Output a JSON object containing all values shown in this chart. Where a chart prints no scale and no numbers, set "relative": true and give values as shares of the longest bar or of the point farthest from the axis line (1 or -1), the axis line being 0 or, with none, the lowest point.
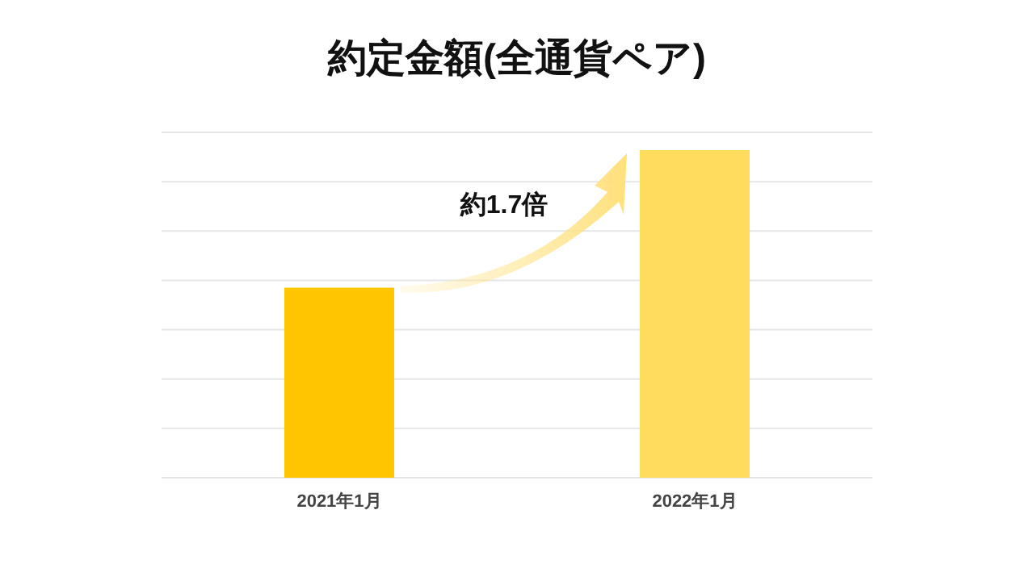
{
  "chart_data": {
    "type": "bar",
    "title": "約定金額(全通貨ペア)",
    "relative": true,
    "grid": true,
    "categories": [
      "2021年1月",
      "2022年1月"
    ],
    "values": [
      0.58,
      1
    ],
    "colors": [
      "#ffc600",
      "#ffdc5e"
    ],
    "annotations": [
      "約1.7倍"
    ]
  }
}
